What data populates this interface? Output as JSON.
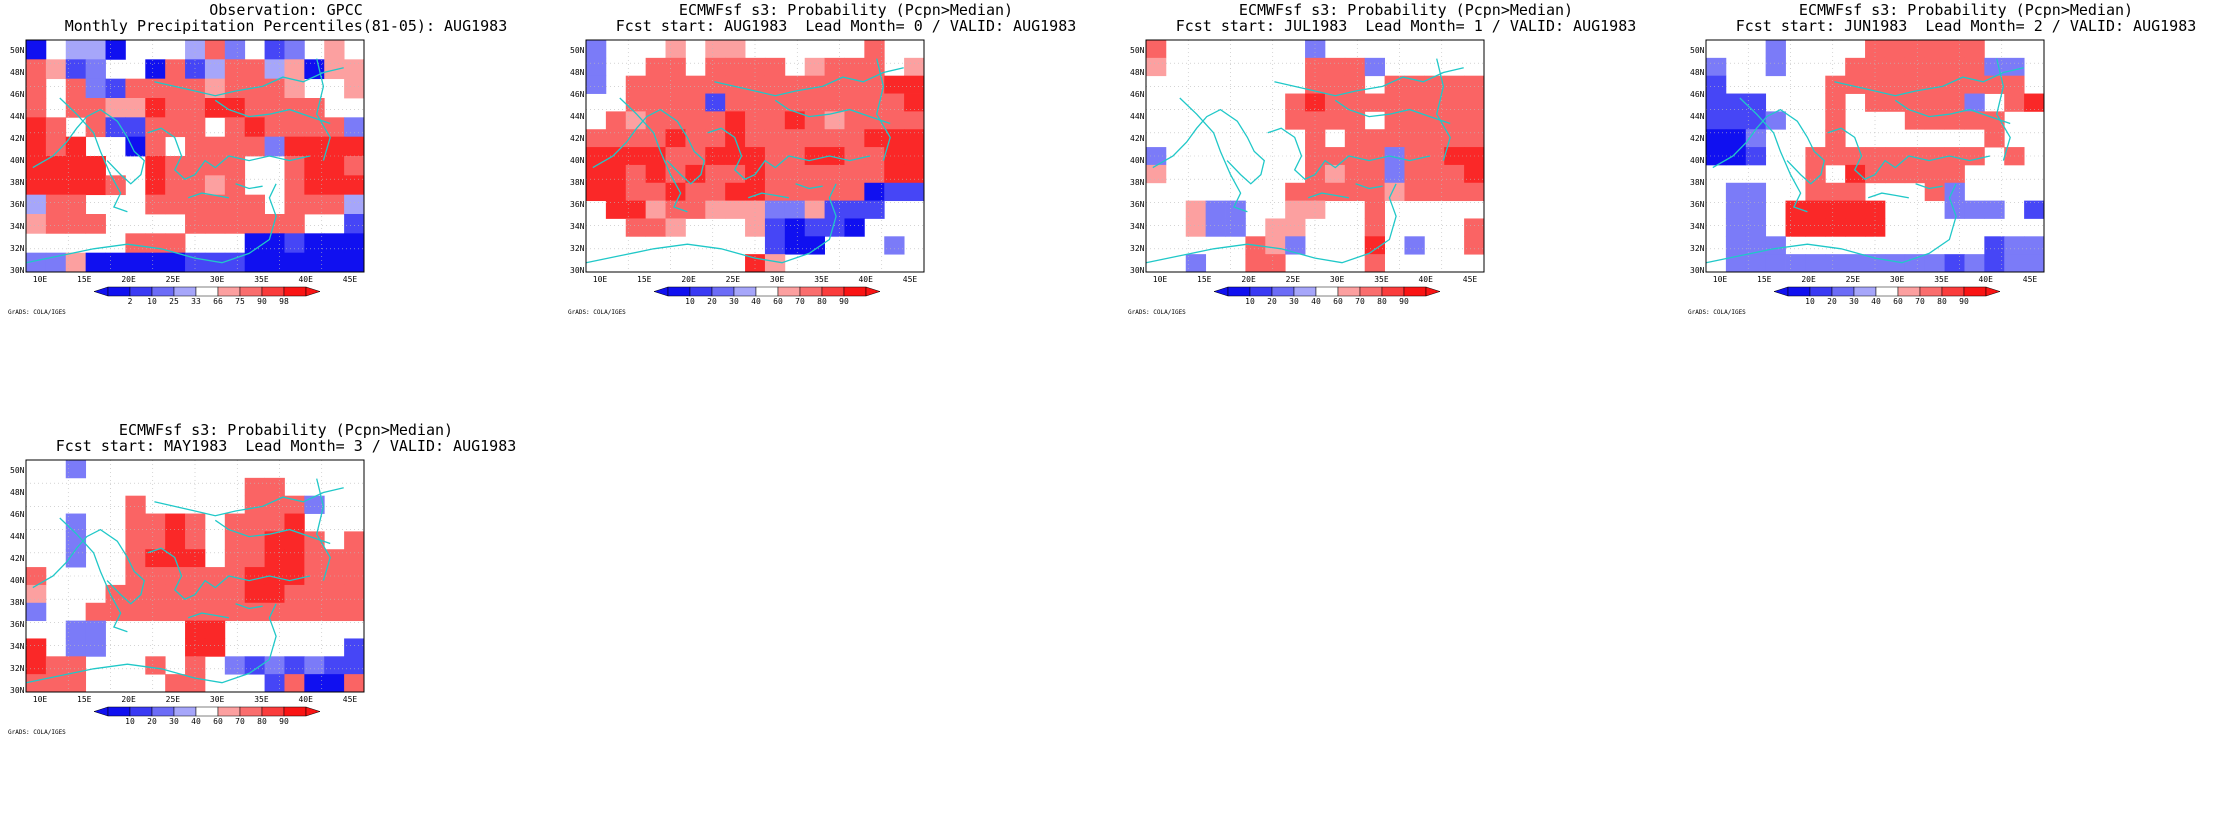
{
  "panels": [
    {
      "id": "p0",
      "title_line1": "Observation: GPCC",
      "title_line2": "Monthly Precipitation Percentiles(81-05): AUG1983",
      "legend_type": "percentile",
      "grid": [
        [
          1,
          0,
          4,
          4,
          1,
          0,
          0,
          0,
          4,
          6,
          3,
          0,
          2,
          3,
          0,
          5,
          0
        ],
        [
          6,
          5,
          2,
          3,
          0,
          0,
          1,
          6,
          2,
          4,
          6,
          6,
          4,
          5,
          1,
          5,
          5
        ],
        [
          6,
          0,
          6,
          3,
          2,
          6,
          6,
          6,
          6,
          5,
          6,
          6,
          6,
          5,
          0,
          0,
          5
        ],
        [
          6,
          0,
          6,
          6,
          5,
          5,
          7,
          6,
          6,
          7,
          7,
          6,
          6,
          6,
          6,
          0,
          0
        ],
        [
          7,
          6,
          0,
          6,
          2,
          2,
          6,
          6,
          6,
          0,
          6,
          7,
          6,
          6,
          6,
          6,
          3
        ],
        [
          7,
          6,
          7,
          0,
          0,
          1,
          6,
          0,
          6,
          6,
          6,
          6,
          3,
          7,
          7,
          7,
          7
        ],
        [
          7,
          7,
          7,
          7,
          0,
          0,
          7,
          6,
          6,
          6,
          6,
          0,
          0,
          6,
          7,
          7,
          6
        ],
        [
          7,
          7,
          7,
          7,
          6,
          0,
          7,
          6,
          6,
          5,
          6,
          0,
          0,
          6,
          7,
          7,
          7
        ],
        [
          4,
          6,
          6,
          0,
          0,
          0,
          6,
          6,
          6,
          6,
          6,
          6,
          0,
          6,
          6,
          6,
          4
        ],
        [
          5,
          6,
          6,
          6,
          0,
          0,
          0,
          0,
          6,
          6,
          6,
          6,
          6,
          6,
          0,
          0,
          2
        ],
        [
          0,
          0,
          0,
          0,
          0,
          6,
          6,
          6,
          0,
          0,
          0,
          1,
          1,
          2,
          1,
          1,
          1
        ],
        [
          3,
          3,
          5,
          1,
          1,
          1,
          1,
          1,
          2,
          2,
          2,
          1,
          1,
          1,
          1,
          1,
          1
        ]
      ]
    },
    {
      "id": "p1",
      "title_line1": "ECMWFsf s3: Probability (Pcpn>Median)",
      "title_line2": "Fcst start: AUG1983  Lead Month= 0 / VALID: AUG1983",
      "legend_type": "probability",
      "grid": [
        [
          3,
          0,
          0,
          0,
          5,
          0,
          5,
          5,
          0,
          0,
          0,
          0,
          0,
          0,
          6,
          0,
          0
        ],
        [
          3,
          0,
          0,
          6,
          6,
          0,
          6,
          6,
          6,
          6,
          0,
          5,
          6,
          6,
          6,
          0,
          5
        ],
        [
          3,
          0,
          6,
          6,
          6,
          6,
          6,
          6,
          6,
          6,
          6,
          6,
          6,
          6,
          6,
          7,
          7
        ],
        [
          0,
          0,
          6,
          6,
          6,
          6,
          2,
          6,
          6,
          6,
          6,
          6,
          6,
          6,
          6,
          6,
          7
        ],
        [
          0,
          6,
          5,
          6,
          6,
          6,
          6,
          7,
          6,
          6,
          7,
          6,
          5,
          6,
          6,
          6,
          6
        ],
        [
          6,
          6,
          6,
          6,
          7,
          6,
          6,
          7,
          6,
          6,
          6,
          6,
          6,
          6,
          7,
          7,
          7
        ],
        [
          7,
          7,
          7,
          7,
          6,
          6,
          7,
          7,
          7,
          6,
          6,
          7,
          7,
          6,
          6,
          7,
          7
        ],
        [
          7,
          7,
          6,
          7,
          6,
          7,
          6,
          6,
          7,
          6,
          6,
          6,
          6,
          6,
          6,
          7,
          7
        ],
        [
          7,
          7,
          6,
          6,
          7,
          6,
          6,
          7,
          7,
          6,
          6,
          6,
          6,
          6,
          1,
          2,
          2
        ],
        [
          0,
          7,
          7,
          5,
          6,
          6,
          5,
          5,
          5,
          3,
          3,
          5,
          2,
          2,
          2,
          0,
          0
        ],
        [
          0,
          0,
          6,
          6,
          5,
          0,
          0,
          0,
          5,
          2,
          1,
          2,
          2,
          1,
          0,
          0,
          0
        ],
        [
          0,
          0,
          0,
          0,
          0,
          0,
          0,
          0,
          0,
          2,
          1,
          1,
          0,
          0,
          0,
          3,
          0
        ],
        [
          0,
          0,
          0,
          0,
          0,
          0,
          0,
          0,
          7,
          5,
          0,
          0,
          0,
          0,
          0,
          0,
          0
        ]
      ]
    },
    {
      "id": "p2",
      "title_line1": "ECMWFsf s3: Probability (Pcpn>Median)",
      "title_line2": "Fcst start: JUL1983  Lead Month= 1 / VALID: AUG1983",
      "legend_type": "probability",
      "grid": [
        [
          6,
          0,
          0,
          0,
          0,
          0,
          0,
          0,
          3,
          0,
          0,
          0,
          0,
          0,
          0,
          0,
          0
        ],
        [
          5,
          0,
          0,
          0,
          0,
          0,
          0,
          0,
          6,
          6,
          6,
          3,
          0,
          0,
          0,
          0,
          0
        ],
        [
          0,
          0,
          0,
          0,
          0,
          0,
          0,
          0,
          6,
          6,
          6,
          0,
          6,
          6,
          6,
          6,
          6
        ],
        [
          0,
          0,
          0,
          0,
          0,
          0,
          0,
          6,
          7,
          6,
          6,
          6,
          6,
          6,
          6,
          6,
          6
        ],
        [
          0,
          0,
          0,
          0,
          0,
          0,
          0,
          6,
          6,
          6,
          6,
          0,
          6,
          6,
          6,
          6,
          6
        ],
        [
          0,
          0,
          0,
          0,
          0,
          0,
          0,
          0,
          6,
          0,
          6,
          6,
          6,
          6,
          6,
          6,
          6
        ],
        [
          3,
          0,
          0,
          0,
          0,
          0,
          0,
          0,
          6,
          6,
          6,
          6,
          3,
          6,
          6,
          7,
          7
        ],
        [
          5,
          0,
          0,
          0,
          0,
          0,
          0,
          0,
          6,
          5,
          6,
          6,
          3,
          6,
          6,
          6,
          7
        ],
        [
          0,
          0,
          0,
          0,
          0,
          0,
          0,
          6,
          6,
          6,
          6,
          6,
          5,
          6,
          6,
          6,
          6
        ],
        [
          0,
          0,
          5,
          3,
          3,
          0,
          0,
          5,
          5,
          0,
          0,
          6,
          0,
          0,
          0,
          0,
          0
        ],
        [
          0,
          0,
          5,
          3,
          3,
          0,
          5,
          5,
          0,
          0,
          0,
          6,
          0,
          0,
          0,
          0,
          6
        ],
        [
          0,
          0,
          0,
          0,
          0,
          6,
          5,
          3,
          0,
          0,
          0,
          7,
          0,
          3,
          0,
          0,
          6
        ],
        [
          0,
          0,
          3,
          0,
          0,
          6,
          6,
          0,
          0,
          0,
          0,
          6,
          0,
          0,
          0,
          0,
          0
        ]
      ]
    },
    {
      "id": "p3",
      "title_line1": "ECMWFsf s3: Probability (Pcpn>Median)",
      "title_line2": "Fcst start: JUN1983  Lead Month= 2 / VALID: AUG1983",
      "legend_type": "probability",
      "grid": [
        [
          0,
          0,
          0,
          3,
          0,
          0,
          0,
          0,
          6,
          6,
          6,
          6,
          6,
          6,
          0,
          0,
          0
        ],
        [
          3,
          0,
          0,
          3,
          0,
          0,
          0,
          6,
          6,
          6,
          6,
          6,
          6,
          6,
          3,
          3,
          0
        ],
        [
          2,
          0,
          0,
          0,
          0,
          0,
          6,
          6,
          6,
          6,
          6,
          6,
          6,
          6,
          6,
          6,
          0
        ],
        [
          2,
          2,
          2,
          0,
          0,
          0,
          6,
          0,
          6,
          6,
          6,
          6,
          6,
          3,
          0,
          6,
          7
        ],
        [
          2,
          2,
          2,
          3,
          0,
          0,
          6,
          0,
          0,
          0,
          6,
          6,
          6,
          6,
          6,
          0,
          0
        ],
        [
          1,
          1,
          3,
          0,
          0,
          0,
          6,
          0,
          0,
          0,
          0,
          0,
          0,
          0,
          6,
          0,
          0
        ],
        [
          1,
          1,
          2,
          0,
          0,
          6,
          6,
          6,
          6,
          6,
          6,
          6,
          6,
          6,
          0,
          6,
          0
        ],
        [
          0,
          0,
          0,
          0,
          0,
          6,
          0,
          7,
          6,
          6,
          6,
          6,
          6,
          0,
          0,
          0,
          0
        ],
        [
          0,
          3,
          3,
          0,
          0,
          6,
          6,
          6,
          0,
          0,
          0,
          6,
          3,
          0,
          0,
          0,
          0
        ],
        [
          0,
          3,
          3,
          0,
          7,
          7,
          7,
          7,
          7,
          0,
          0,
          0,
          3,
          3,
          3,
          0,
          2
        ],
        [
          0,
          3,
          3,
          0,
          7,
          7,
          7,
          7,
          7,
          0,
          0,
          0,
          0,
          0,
          0,
          0,
          0
        ],
        [
          0,
          3,
          3,
          3,
          0,
          0,
          0,
          0,
          0,
          0,
          0,
          0,
          0,
          0,
          2,
          3,
          3
        ],
        [
          0,
          3,
          3,
          3,
          3,
          3,
          3,
          3,
          3,
          3,
          3,
          3,
          2,
          3,
          2,
          3,
          3
        ]
      ]
    },
    {
      "id": "p4",
      "title_line1": "ECMWFsf s3: Probability (Pcpn>Median)",
      "title_line2": "Fcst start: MAY1983  Lead Month= 3 / VALID: AUG1983",
      "legend_type": "probability",
      "grid": [
        [
          0,
          0,
          3,
          0,
          0,
          0,
          0,
          0,
          0,
          0,
          0,
          0,
          0,
          0,
          0,
          0,
          0
        ],
        [
          0,
          0,
          0,
          0,
          0,
          0,
          0,
          0,
          0,
          0,
          0,
          6,
          6,
          0,
          0,
          0,
          0
        ],
        [
          0,
          0,
          0,
          0,
          0,
          6,
          0,
          0,
          0,
          0,
          0,
          6,
          6,
          6,
          3,
          0,
          0
        ],
        [
          0,
          0,
          3,
          0,
          0,
          6,
          6,
          7,
          6,
          0,
          6,
          6,
          6,
          7,
          0,
          0,
          0
        ],
        [
          0,
          0,
          3,
          0,
          0,
          6,
          6,
          7,
          6,
          0,
          6,
          6,
          7,
          7,
          6,
          0,
          6
        ],
        [
          0,
          0,
          3,
          0,
          0,
          6,
          7,
          7,
          7,
          0,
          6,
          6,
          7,
          7,
          6,
          6,
          6
        ],
        [
          6,
          0,
          0,
          0,
          0,
          6,
          6,
          6,
          6,
          6,
          6,
          7,
          7,
          7,
          6,
          6,
          6
        ],
        [
          5,
          0,
          0,
          0,
          6,
          6,
          6,
          6,
          6,
          6,
          6,
          7,
          7,
          6,
          6,
          6,
          6
        ],
        [
          3,
          0,
          0,
          6,
          6,
          6,
          6,
          6,
          6,
          6,
          6,
          6,
          6,
          6,
          6,
          6,
          6
        ],
        [
          0,
          0,
          3,
          3,
          0,
          0,
          0,
          0,
          7,
          7,
          0,
          0,
          0,
          0,
          0,
          0,
          0
        ],
        [
          7,
          0,
          3,
          3,
          0,
          0,
          0,
          0,
          7,
          7,
          0,
          0,
          0,
          0,
          0,
          0,
          2
        ],
        [
          7,
          6,
          6,
          0,
          0,
          0,
          6,
          0,
          6,
          0,
          3,
          2,
          3,
          2,
          3,
          2,
          2
        ],
        [
          6,
          6,
          6,
          0,
          0,
          0,
          0,
          6,
          6,
          0,
          0,
          0,
          2,
          6,
          1,
          1,
          6
        ]
      ]
    }
  ],
  "y_ticks": [
    "50N",
    "48N",
    "46N",
    "44N",
    "42N",
    "40N",
    "38N",
    "36N",
    "34N",
    "32N",
    "30N"
  ],
  "x_ticks": [
    "10E",
    "15E",
    "20E",
    "25E",
    "30E",
    "35E",
    "40E",
    "45E"
  ],
  "legends": {
    "percentile": {
      "labels": [
        "2",
        "10",
        "25",
        "33",
        "66",
        "75",
        "90",
        "98"
      ]
    },
    "probability": {
      "labels": [
        "10",
        "20",
        "30",
        "40",
        "60",
        "70",
        "80",
        "90"
      ]
    }
  },
  "palette": [
    "#ffffff",
    "#1010f0",
    "#4646f6",
    "#7b7bf8",
    "#a6a6fa",
    "#fca0a0",
    "#fa6464",
    "#fa2828"
  ],
  "legend_colors": [
    "#1010f0",
    "#3a3af4",
    "#6c6cf7",
    "#a6a6fa",
    "#ffffff",
    "#fca0a0",
    "#fa6e6e",
    "#fa3c3c",
    "#fa1414"
  ],
  "coast_color": "#20c8c8",
  "grads_label": "GrADS: COLA/IGES"
}
